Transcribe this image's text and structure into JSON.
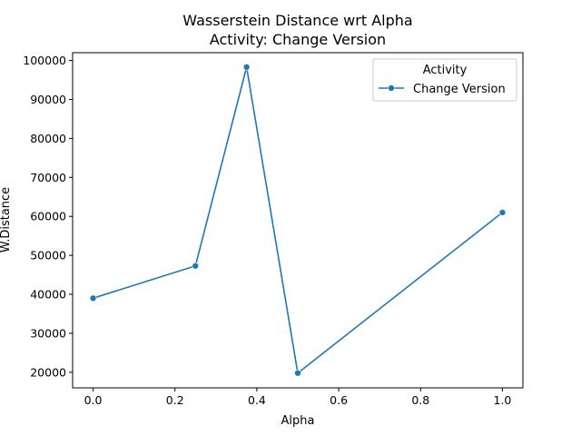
{
  "chart_data": {
    "type": "line",
    "title": "Wasserstein Distance wrt Alpha",
    "subtitle": "Activity: Change Version",
    "xlabel": "Alpha",
    "ylabel": "W.Distance",
    "xlim": [
      -0.05,
      1.05
    ],
    "ylim": [
      16000,
      102000
    ],
    "xticks": [
      0.0,
      0.2,
      0.4,
      0.6,
      0.8,
      1.0
    ],
    "xtick_labels": [
      "0.0",
      "0.2",
      "0.4",
      "0.6",
      "0.8",
      "1.0"
    ],
    "yticks": [
      20000,
      30000,
      40000,
      50000,
      60000,
      70000,
      80000,
      90000,
      100000
    ],
    "ytick_labels": [
      "20000",
      "30000",
      "40000",
      "50000",
      "60000",
      "70000",
      "80000",
      "90000",
      "100000"
    ],
    "grid": false,
    "legend": {
      "title": "Activity",
      "placement": "top-right"
    },
    "series": [
      {
        "name": "Change Version",
        "color": "#1f77b4",
        "marker": "circle",
        "points": [
          {
            "x": 0.0,
            "y": 39000
          },
          {
            "x": 0.25,
            "y": 47300
          },
          {
            "x": 0.375,
            "y": 98300
          },
          {
            "x": 0.5,
            "y": 19800
          },
          {
            "x": 1.0,
            "y": 61000
          }
        ]
      }
    ]
  }
}
